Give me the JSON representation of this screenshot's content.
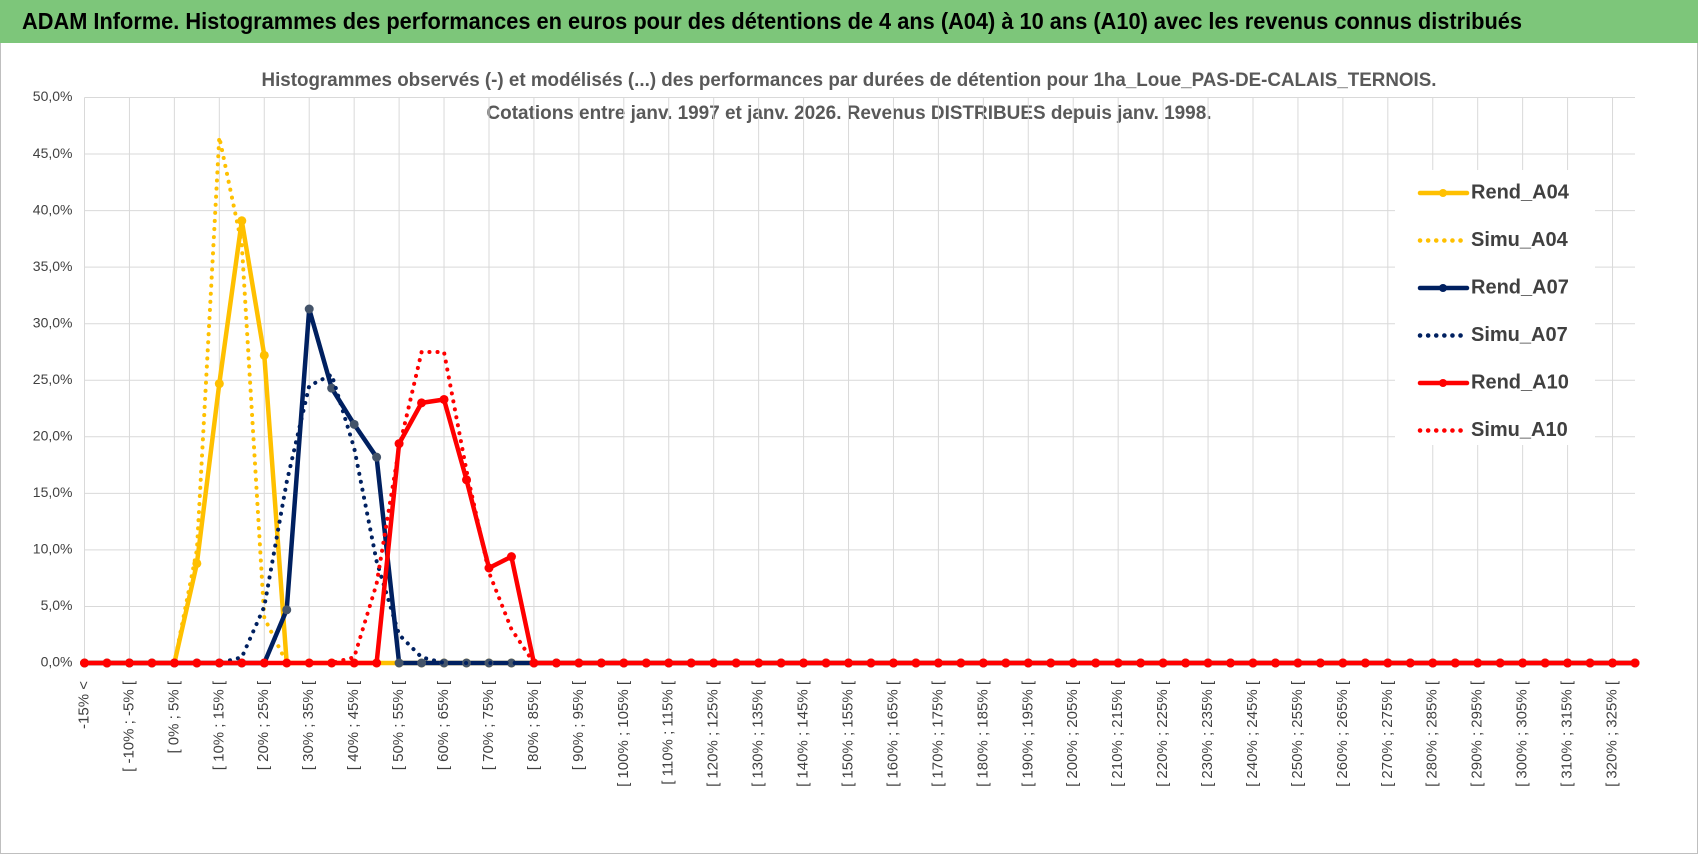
{
  "header": {
    "title": "ADAM Informe. Histogrammes des performances en euros pour des détentions de 4 ans (A04) à 10 ans (A10) avec les revenus connus distribués"
  },
  "chart_data": {
    "type": "line",
    "title": "Histogrammes observés (-) et modélisés (...) des performances par durées de détention pour 1ha_Loue_PAS-DE-CALAIS_TERNOIS.",
    "subtitle": "Cotations entre janv. 1997 et janv. 2026. Revenus DISTRIBUES depuis janv. 1998.",
    "categories": [
      "-15% <",
      null,
      "[ -10% ; -5% [",
      null,
      "[ 0% ; 5% [",
      null,
      "[ 10% ; 15% [",
      null,
      "[ 20% ; 25% [",
      null,
      "[ 30% ; 35% [",
      null,
      "[ 40% ; 45% [",
      null,
      "[ 50% ; 55% [",
      null,
      "[ 60% ; 65% [",
      null,
      "[ 70% ; 75% [",
      null,
      "[ 80% ; 85% [",
      null,
      "[ 90% ; 95% [",
      null,
      "[ 100% ; 105% [",
      null,
      "[ 110% ; 115% [",
      null,
      "[ 120% ; 125% [",
      null,
      "[ 130% ; 135% [",
      null,
      "[ 140% ; 145% [",
      null,
      "[ 150% ; 155% [",
      null,
      "[ 160% ; 165% [",
      null,
      "[ 170% ; 175% [",
      null,
      "[ 180% ; 185% [",
      null,
      "[ 190% ; 195% [",
      null,
      "[ 200% ; 205% [",
      null,
      "[ 210% ; 215% [",
      null,
      "[ 220% ; 225% [",
      null,
      "[ 230% ; 235% [",
      null,
      "[ 240% ; 245% [",
      null,
      "[ 250% ; 255% [",
      null,
      "[ 260% ; 265% [",
      null,
      "[ 270% ; 275% [",
      null,
      "[ 280% ; 285% [",
      null,
      "[ 290% ; 295% [",
      null,
      "[ 300% ; 305% [",
      null,
      "[ 310% ; 315% [",
      null,
      "[ 320% ; 325% [",
      null
    ],
    "series": [
      {
        "name": "Rend_A04",
        "color": "#ffc000",
        "style": "solid",
        "values": [
          0,
          0,
          0,
          0,
          0,
          8.8,
          24.7,
          39.1,
          27.2,
          0,
          0,
          0,
          0,
          0,
          0,
          0,
          0,
          0,
          0,
          0,
          0,
          0,
          0,
          0,
          0,
          0,
          0,
          0,
          0,
          0,
          0,
          0,
          0,
          0,
          0,
          0,
          0,
          0,
          0,
          0,
          0,
          0,
          0,
          0,
          0,
          0,
          0,
          0,
          0,
          0,
          0,
          0,
          0,
          0,
          0,
          0,
          0,
          0,
          0,
          0,
          0,
          0,
          0,
          0,
          0,
          0,
          0,
          0,
          0,
          0
        ]
      },
      {
        "name": "Simu_A04",
        "color": "#ffc000",
        "style": "dotted",
        "values": [
          0,
          0,
          0,
          0,
          0,
          10,
          46.5,
          37,
          4,
          0,
          0,
          0,
          0,
          0,
          0,
          0,
          0,
          0,
          0,
          0,
          0,
          0,
          0,
          0,
          0,
          0,
          0,
          0,
          0,
          0,
          0,
          0,
          0,
          0,
          0,
          0,
          0,
          0,
          0,
          0,
          0,
          0,
          0,
          0,
          0,
          0,
          0,
          0,
          0,
          0,
          0,
          0,
          0,
          0,
          0,
          0,
          0,
          0,
          0,
          0,
          0,
          0,
          0,
          0,
          0,
          0,
          0,
          0,
          0,
          0
        ]
      },
      {
        "name": "Rend_A07",
        "color": "#002060",
        "style": "solid",
        "values": [
          0,
          0,
          0,
          0,
          0,
          0,
          0,
          0,
          0,
          4.7,
          31.3,
          24.3,
          21.1,
          18.2,
          0,
          0,
          0,
          0,
          0,
          0,
          0,
          0,
          0,
          0,
          0,
          0,
          0,
          0,
          0,
          0,
          0,
          0,
          0,
          0,
          0,
          0,
          0,
          0,
          0,
          0,
          0,
          0,
          0,
          0,
          0,
          0,
          0,
          0,
          0,
          0,
          0,
          0,
          0,
          0,
          0,
          0,
          0,
          0,
          0,
          0,
          0,
          0,
          0,
          0,
          0,
          0,
          0,
          0,
          0,
          0
        ]
      },
      {
        "name": "Simu_A07",
        "color": "#002060",
        "style": "dotted",
        "values": [
          0,
          0,
          0,
          0,
          0,
          0,
          0,
          0.5,
          5,
          16,
          24.5,
          25.5,
          19,
          9,
          2.5,
          0.5,
          0,
          0,
          0,
          0,
          0,
          0,
          0,
          0,
          0,
          0,
          0,
          0,
          0,
          0,
          0,
          0,
          0,
          0,
          0,
          0,
          0,
          0,
          0,
          0,
          0,
          0,
          0,
          0,
          0,
          0,
          0,
          0,
          0,
          0,
          0,
          0,
          0,
          0,
          0,
          0,
          0,
          0,
          0,
          0,
          0,
          0,
          0,
          0,
          0,
          0,
          0,
          0,
          0,
          0
        ]
      },
      {
        "name": "Rend_A10",
        "color": "#ff0000",
        "style": "solid",
        "values": [
          0,
          0,
          0,
          0,
          0,
          0,
          0,
          0,
          0,
          0,
          0,
          0,
          0,
          0,
          19.4,
          23,
          23.3,
          16.2,
          8.4,
          9.4,
          0,
          0,
          0,
          0,
          0,
          0,
          0,
          0,
          0,
          0,
          0,
          0,
          0,
          0,
          0,
          0,
          0,
          0,
          0,
          0,
          0,
          0,
          0,
          0,
          0,
          0,
          0,
          0,
          0,
          0,
          0,
          0,
          0,
          0,
          0,
          0,
          0,
          0,
          0,
          0,
          0,
          0,
          0,
          0,
          0,
          0,
          0,
          0,
          0,
          0
        ]
      },
      {
        "name": "Simu_A10",
        "color": "#ff0000",
        "style": "dotted",
        "values": [
          0,
          0,
          0,
          0,
          0,
          0,
          0,
          0,
          0,
          0,
          0,
          0,
          0.5,
          7,
          19,
          27.5,
          27.5,
          17,
          8,
          3,
          0,
          0,
          0,
          0,
          0,
          0,
          0,
          0,
          0,
          0,
          0,
          0,
          0,
          0,
          0,
          0,
          0,
          0,
          0,
          0,
          0,
          0,
          0,
          0,
          0,
          0,
          0,
          0,
          0,
          0,
          0,
          0,
          0,
          0,
          0,
          0,
          0,
          0,
          0,
          0,
          0,
          0,
          0,
          0,
          0,
          0,
          0,
          0,
          0,
          0
        ]
      }
    ],
    "ylim": [
      0,
      50
    ],
    "yticks": [
      {
        "value": 0,
        "label": "0,0%"
      },
      {
        "value": 5,
        "label": "5,0%"
      },
      {
        "value": 10,
        "label": "10,0%"
      },
      {
        "value": 15,
        "label": "15,0%"
      },
      {
        "value": 20,
        "label": "20,0%"
      },
      {
        "value": 25,
        "label": "25,0%"
      },
      {
        "value": 30,
        "label": "30,0%"
      },
      {
        "value": 35,
        "label": "35,0%"
      },
      {
        "value": 40,
        "label": "40,0%"
      },
      {
        "value": 45,
        "label": "45,0%"
      },
      {
        "value": 50,
        "label": "50,0%"
      }
    ],
    "grid": true,
    "legend": "right"
  }
}
